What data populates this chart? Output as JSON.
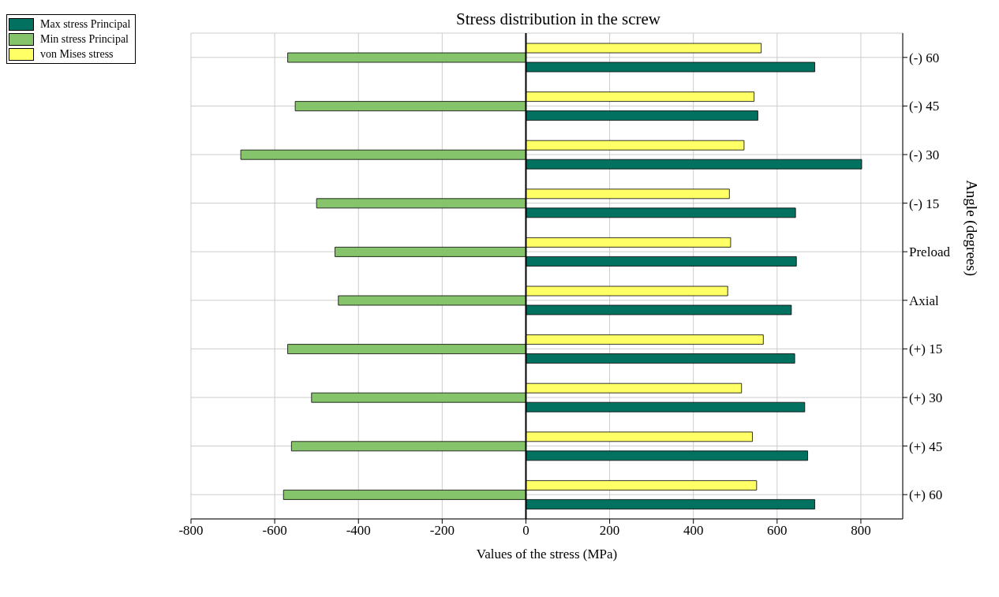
{
  "chart_data": {
    "type": "bar",
    "orientation": "horizontal",
    "title": "Stress distribution in the screw",
    "xlabel": "Values of the stress (MPa)",
    "ylabel": "Angle (degrees)",
    "categories": [
      "(-) 60",
      "(-) 45",
      "(-) 30",
      "(-) 15",
      "Preload",
      "Axial",
      "(+) 15",
      "(+) 30",
      "(+) 45",
      "(+) 60"
    ],
    "series": [
      {
        "name": "Max stress Principal",
        "color": "#037160",
        "values": [
          690,
          554,
          802,
          644,
          646,
          634,
          642,
          666,
          673,
          690
        ]
      },
      {
        "name": "Min stress Principal",
        "color": "#85c46a",
        "values": [
          -569,
          -551,
          -681,
          -500,
          -456,
          -448,
          -569,
          -512,
          -560,
          -579
        ]
      },
      {
        "name": "von Mises stress",
        "color": "#ffff66",
        "values": [
          562,
          545,
          521,
          486,
          489,
          482,
          567,
          515,
          541,
          551
        ]
      }
    ],
    "xlim": [
      -800,
      900
    ],
    "xticks": [
      -800,
      -600,
      -400,
      -200,
      0,
      200,
      400,
      600,
      800
    ],
    "ref_lines": [
      {
        "axis": "x",
        "value": 0,
        "color": "#000000"
      }
    ],
    "grid": true,
    "legend": "top left"
  }
}
